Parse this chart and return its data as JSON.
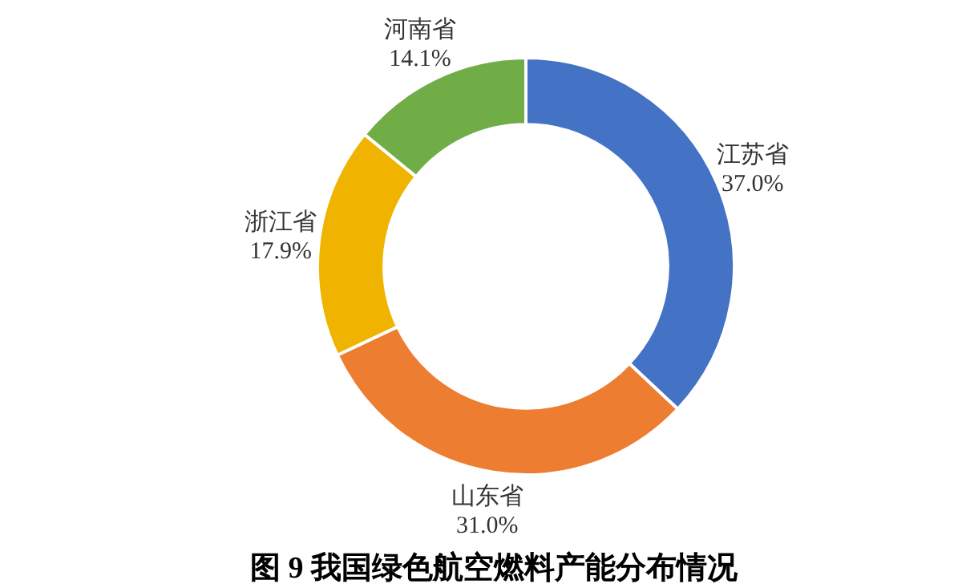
{
  "chart_data": {
    "type": "donut",
    "title": "图 9 我国绿色航空燃料产能分布情况",
    "categories": [
      "江苏省",
      "山东省",
      "浙江省",
      "河南省"
    ],
    "values": [
      37.0,
      31.0,
      17.9,
      14.1
    ],
    "value_labels": [
      "37.0%",
      "31.0%",
      "17.9%",
      "14.1%"
    ],
    "colors": [
      "#4472c4",
      "#ed7d31",
      "#f0b400",
      "#70ad47"
    ],
    "legend": false
  }
}
